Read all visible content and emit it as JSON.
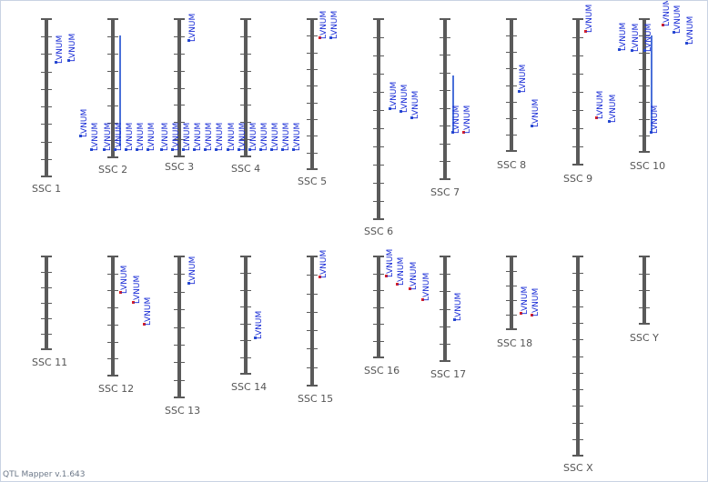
{
  "footer": "QTL Mapper v.1.643",
  "qtl_label": "LVNUM",
  "colors": {
    "chromosome": "#5a5a5a",
    "qtl_text": "#1a2dd6",
    "marker_red": "#e02020",
    "span_blue": "#4a70d9"
  },
  "chromosomes": [
    {
      "name": "SSC 1",
      "qtl_count": 2
    },
    {
      "name": "SSC 2",
      "qtl_count": 7
    },
    {
      "name": "SSC 3",
      "qtl_count": 7
    },
    {
      "name": "SSC 4",
      "qtl_count": 7
    },
    {
      "name": "SSC 5",
      "qtl_count": 2
    },
    {
      "name": "SSC 6",
      "qtl_count": 3
    },
    {
      "name": "SSC 7",
      "qtl_count": 2
    },
    {
      "name": "SSC 8",
      "qtl_count": 2
    },
    {
      "name": "SSC 9",
      "qtl_count": 3
    },
    {
      "name": "SSC 10",
      "qtl_count": 7
    },
    {
      "name": "SSC 11",
      "qtl_count": 0
    },
    {
      "name": "SSC 12",
      "qtl_count": 3
    },
    {
      "name": "SSC 13",
      "qtl_count": 1
    },
    {
      "name": "SSC 14",
      "qtl_count": 1
    },
    {
      "name": "SSC 15",
      "qtl_count": 1
    },
    {
      "name": "SSC 16",
      "qtl_count": 4
    },
    {
      "name": "SSC 17",
      "qtl_count": 1
    },
    {
      "name": "SSC 18",
      "qtl_count": 2
    },
    {
      "name": "SSC X",
      "qtl_count": 0
    },
    {
      "name": "SSC Y",
      "qtl_count": 0
    }
  ]
}
